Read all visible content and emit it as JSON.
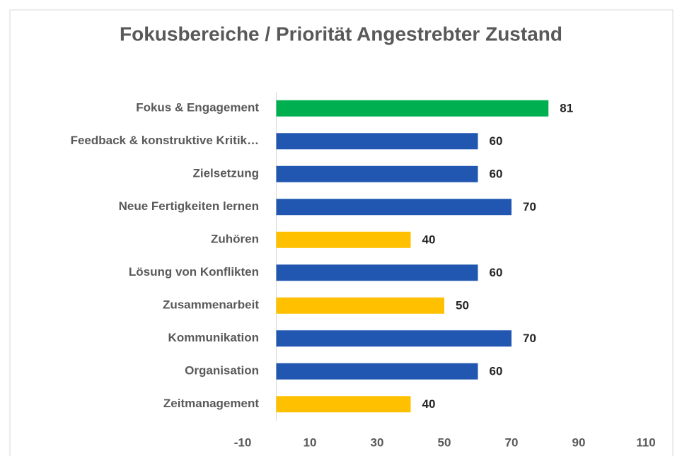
{
  "chart_data": {
    "type": "bar",
    "orientation": "horizontal",
    "title": "Fokusbereiche / Priorität Angestrebter Zustand",
    "categories": [
      "Fokus & Engagement",
      "Feedback & konstruktive Kritik…",
      "Zielsetzung",
      "Neue Fertigkeiten lernen",
      "Zuhören",
      "Lösung von Konflikten",
      "Zusammenarbeit",
      "Kommunikation",
      "Organisation",
      "Zeitmanagement"
    ],
    "values": [
      81,
      60,
      60,
      70,
      40,
      60,
      50,
      70,
      60,
      40
    ],
    "colors": [
      "#00b050",
      "#2157b0",
      "#2157b0",
      "#2157b0",
      "#ffc000",
      "#2157b0",
      "#ffc000",
      "#2157b0",
      "#2157b0",
      "#ffc000"
    ],
    "xlim": [
      -10,
      110
    ],
    "xticks": [
      -10,
      10,
      30,
      50,
      70,
      90,
      110
    ],
    "grid": false
  }
}
